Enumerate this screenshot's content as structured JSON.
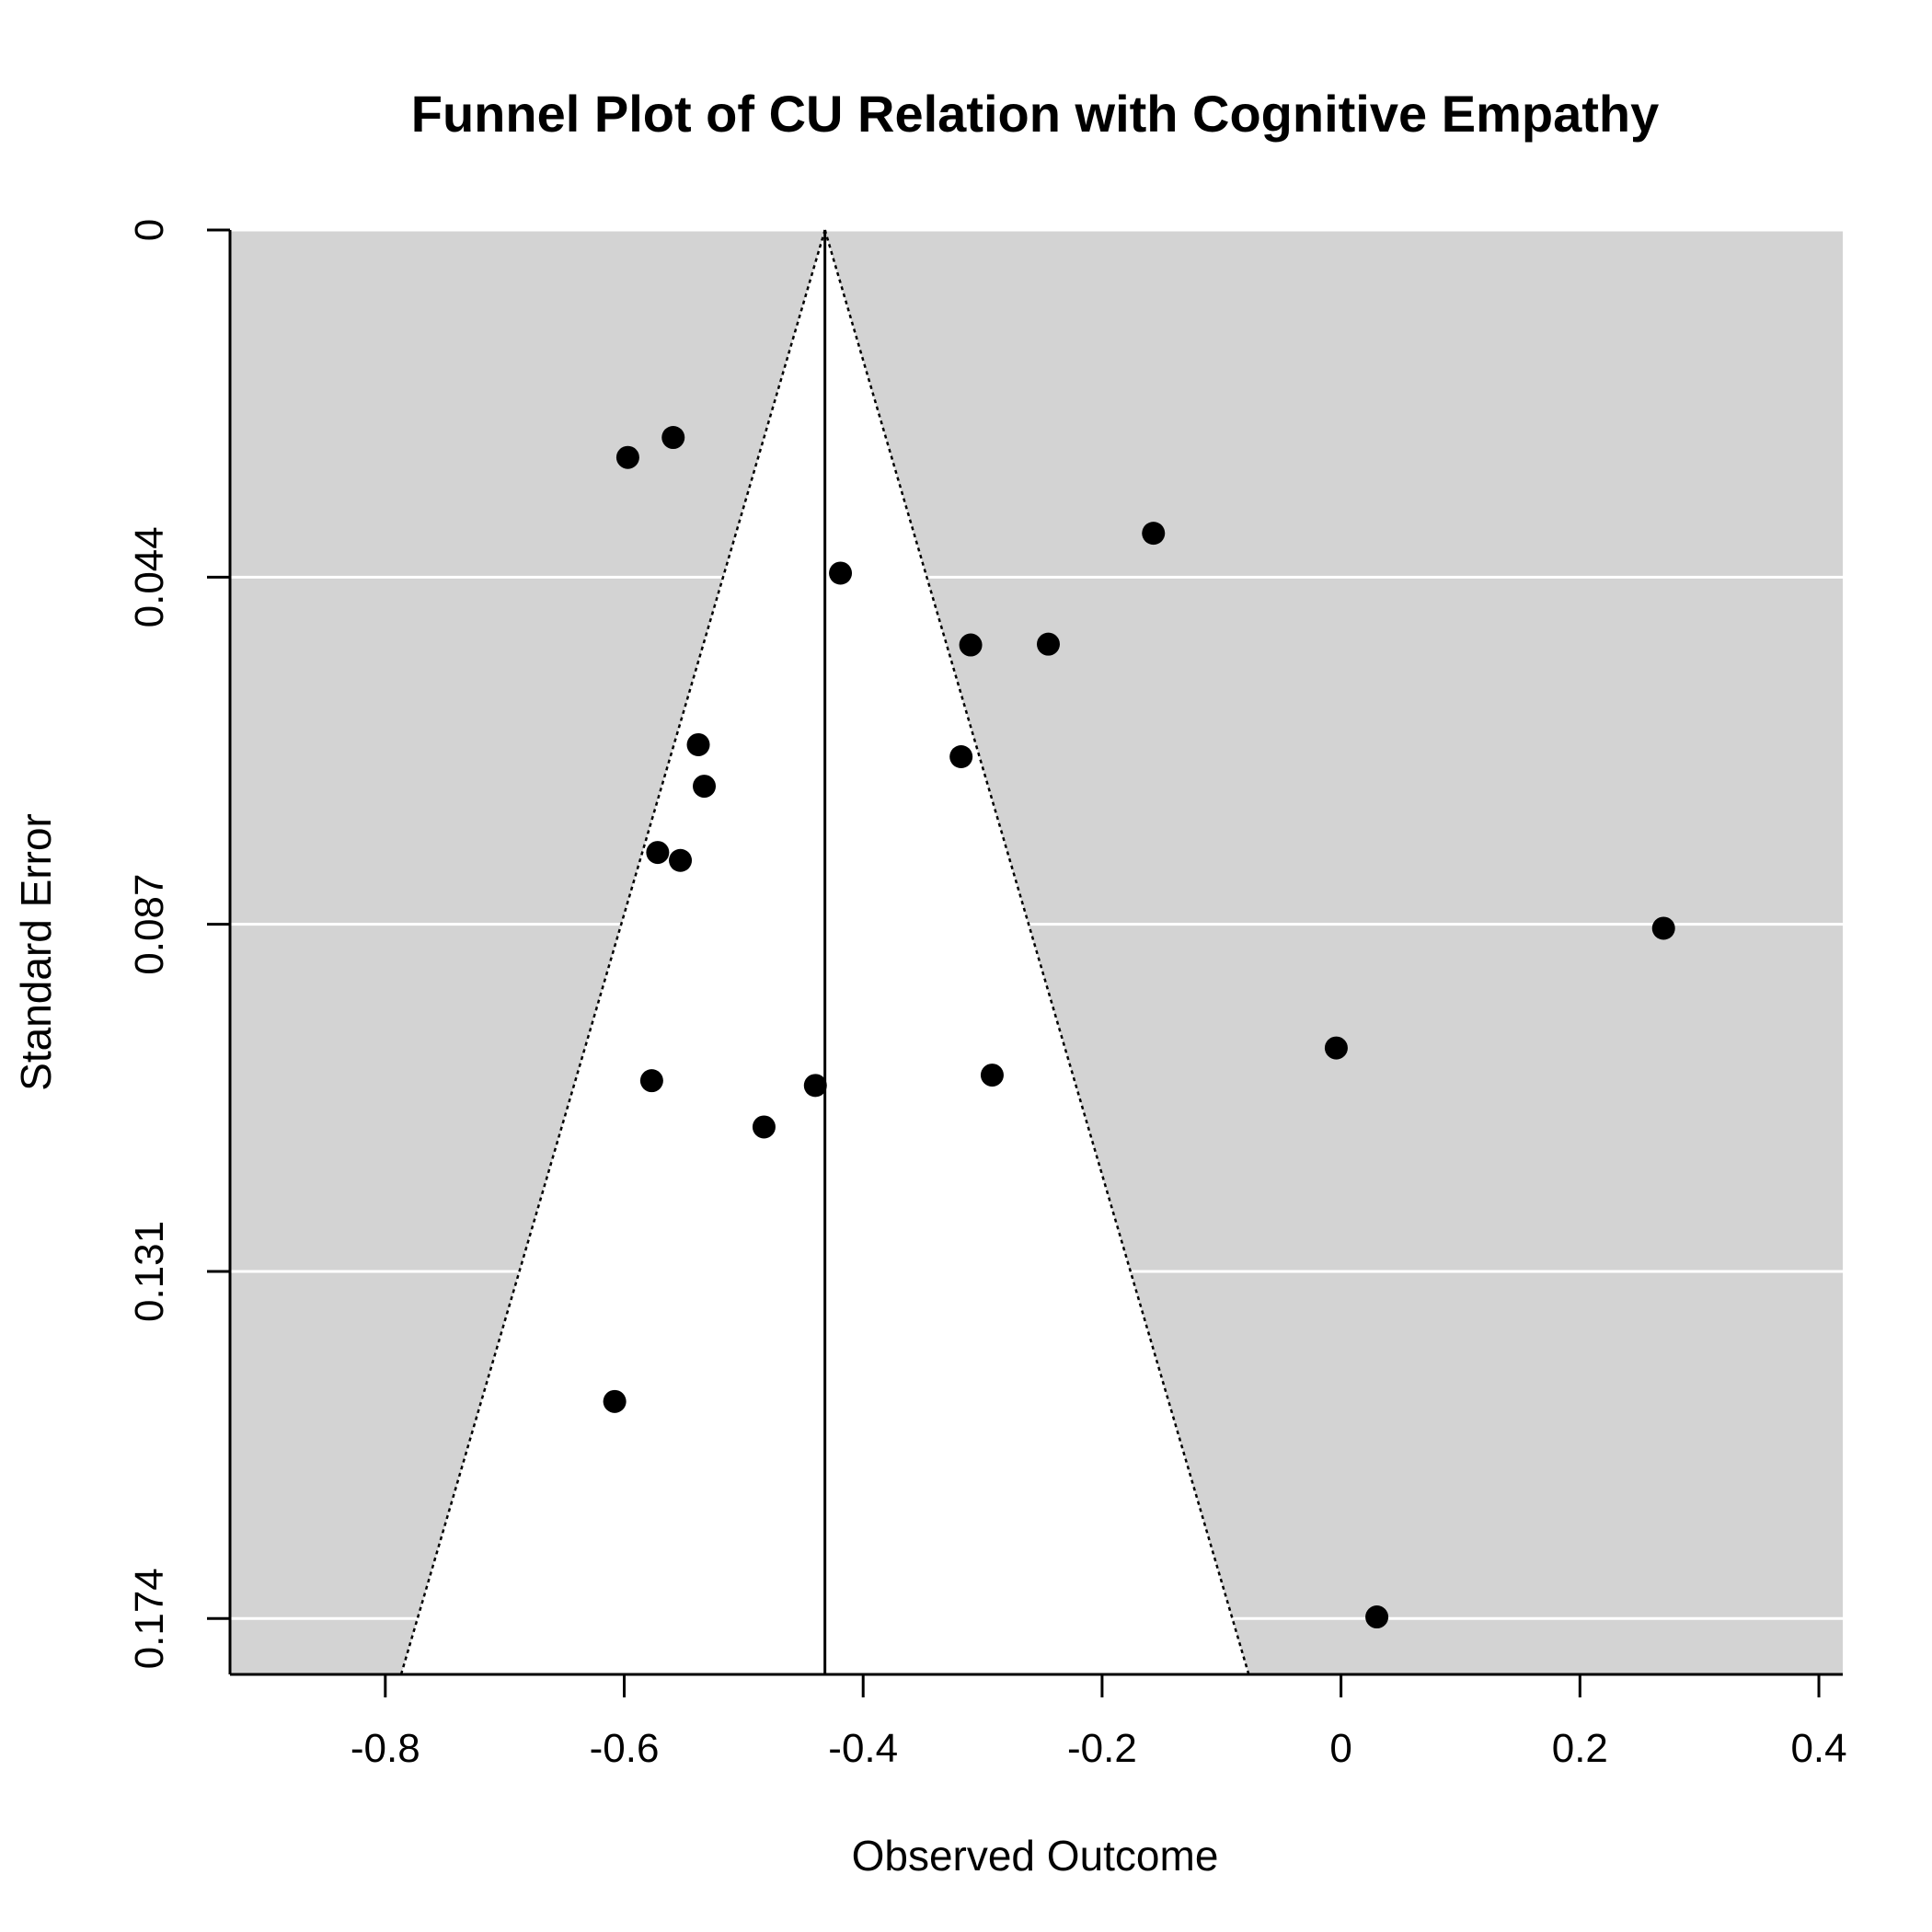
{
  "chart_data": {
    "type": "scatter",
    "subtype": "funnel",
    "title": "Funnel Plot of CU Relation with Cognitive Empathy",
    "xlabel": "Observed Outcome",
    "ylabel": "Standard Error",
    "xlim": [
      -0.93,
      0.42
    ],
    "ylim": [
      0,
      0.181
    ],
    "y_reversed": true,
    "x_ticks": [
      -0.8,
      -0.6,
      -0.4,
      -0.2,
      0,
      0.2,
      0.4
    ],
    "x_tick_labels": [
      "-0.8",
      "-0.6",
      "-0.4",
      "-0.2",
      "0",
      "0.2",
      "0.4"
    ],
    "y_ticks": [
      0,
      0.0435,
      0.087,
      0.1305,
      0.174
    ],
    "y_tick_labels": [
      "0",
      "0.044",
      "0.087",
      "0.131",
      "0.174"
    ],
    "grid": true,
    "summary_estimate": -0.432,
    "funnel_multiplier": 1.96,
    "colors": {
      "background": "#d3d3d3",
      "funnel_fill": "#ffffff",
      "grid": "#ffffff",
      "points": "#000000"
    },
    "points": [
      {
        "x": -0.597,
        "y": 0.0285
      },
      {
        "x": -0.559,
        "y": 0.026
      },
      {
        "x": -0.157,
        "y": 0.038
      },
      {
        "x": -0.419,
        "y": 0.043
      },
      {
        "x": -0.31,
        "y": 0.052
      },
      {
        "x": -0.245,
        "y": 0.0519
      },
      {
        "x": -0.538,
        "y": 0.0645
      },
      {
        "x": -0.318,
        "y": 0.066
      },
      {
        "x": -0.533,
        "y": 0.0697
      },
      {
        "x": -0.572,
        "y": 0.078
      },
      {
        "x": -0.553,
        "y": 0.079
      },
      {
        "x": 0.27,
        "y": 0.0875
      },
      {
        "x": -0.004,
        "y": 0.1025
      },
      {
        "x": -0.577,
        "y": 0.1066
      },
      {
        "x": -0.44,
        "y": 0.1072
      },
      {
        "x": -0.292,
        "y": 0.1059
      },
      {
        "x": -0.483,
        "y": 0.1124
      },
      {
        "x": -0.608,
        "y": 0.1468
      },
      {
        "x": 0.03,
        "y": 0.1738
      }
    ]
  }
}
